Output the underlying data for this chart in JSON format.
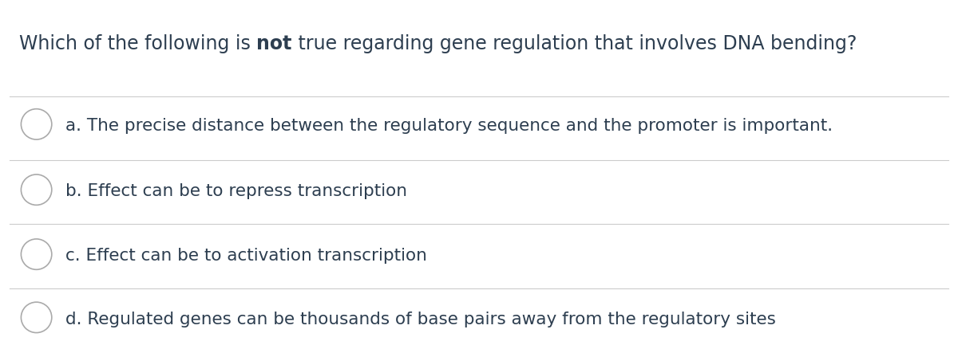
{
  "title_parts": [
    {
      "text": "Which of the following is ",
      "bold": false
    },
    {
      "text": "not",
      "bold": true
    },
    {
      "text": " true regarding gene regulation that involves DNA bending?",
      "bold": false
    }
  ],
  "options": [
    "a. The precise distance between the regulatory sequence and the promoter is important.",
    "b. Effect can be to repress transcription",
    "c. Effect can be to activation transcription",
    "d. Regulated genes can be thousands of base pairs away from the regulatory sites"
  ],
  "bg_color": "#ffffff",
  "text_color": "#2d3e50",
  "line_color": "#cccccc",
  "circle_color": "#aaaaaa",
  "title_fontsize": 17,
  "option_fontsize": 15.5,
  "fig_width": 12.0,
  "fig_height": 4.33,
  "dpi": 100
}
